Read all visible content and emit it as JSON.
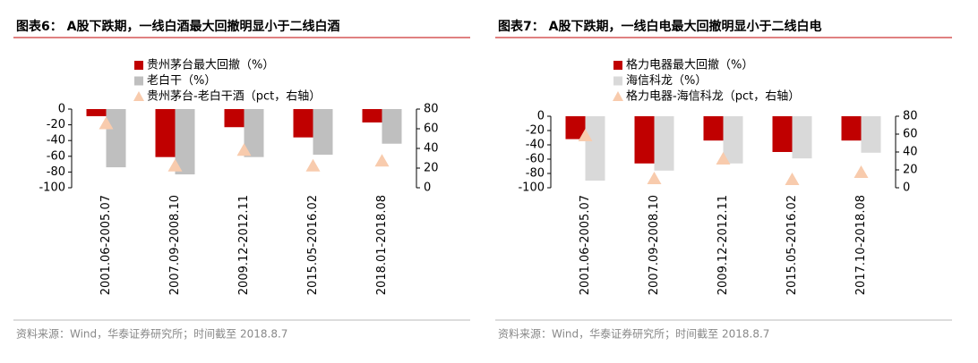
{
  "chart_data": [
    {
      "type": "bar",
      "title": "图表6： A股下跌期，一线白酒最大回撤明显小于二线白酒",
      "categories": [
        "2001.06-2005.07",
        "2007.09-2008.10",
        "2009.12-2012.11",
        "2015.05-2016.02",
        "2018.01-2018.08"
      ],
      "series": [
        {
          "name": "贵州茅台最大回撤（%）",
          "color": "#c00000",
          "values": [
            -9,
            -61,
            -23,
            -36,
            -17
          ]
        },
        {
          "name": "老白干（%）",
          "color": "#bfbfbf",
          "values": [
            -74,
            -83,
            -61,
            -58,
            -44
          ]
        },
        {
          "name": "贵州茅台-老白干酒（pct，右轴）",
          "color": "#f8cbad",
          "axis": "y2",
          "marker": "triangle",
          "values": [
            65,
            22,
            38,
            22,
            27
          ]
        }
      ],
      "ylim": [
        -100,
        0
      ],
      "yticks": [
        0,
        -20,
        -40,
        -60,
        -80,
        -100
      ],
      "y2lim": [
        0,
        80
      ],
      "y2ticks": [
        0,
        20,
        40,
        60,
        80
      ],
      "source": "资料来源：Wind，华泰证券研究所；时间截至 2018.8.7"
    },
    {
      "type": "bar",
      "title": "图表7： A股下跌期，一线白电最大回撤明显小于二线白电",
      "categories": [
        "2001.06-2005.07",
        "2007.09-2008.10",
        "2009.12-2012.11",
        "2015.05-2016.02",
        "2017.10-2018.08"
      ],
      "series": [
        {
          "name": "格力电器最大回撤（%）",
          "color": "#c00000",
          "values": [
            -32,
            -66,
            -34,
            -50,
            -34
          ]
        },
        {
          "name": "海信科龙（%）",
          "color": "#d9d9d9",
          "values": [
            -90,
            -76,
            -66,
            -59,
            -51
          ]
        },
        {
          "name": "格力电器-海信科龙（pct，右轴）",
          "color": "#f8cbad",
          "axis": "y2",
          "marker": "triangle",
          "values": [
            58,
            10,
            32,
            9,
            17
          ]
        }
      ],
      "ylim": [
        -100,
        0
      ],
      "yticks": [
        0,
        -20,
        -40,
        -60,
        -80,
        -100
      ],
      "y2lim": [
        0,
        80
      ],
      "y2ticks": [
        0,
        20,
        40,
        60,
        80
      ],
      "source": "资料来源：Wind，华泰证券研究所；时间截至 2018.8.7"
    }
  ]
}
